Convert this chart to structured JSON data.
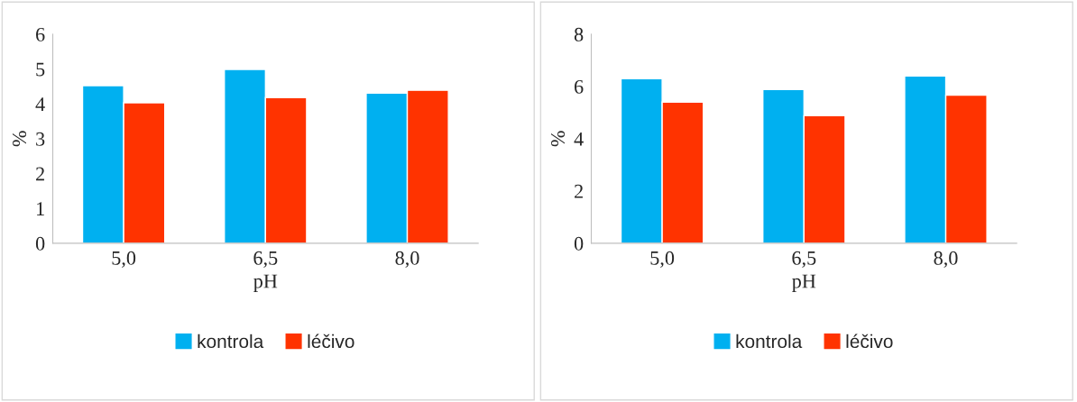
{
  "chart_data": [
    {
      "type": "bar",
      "xlabel": "pH",
      "ylabel": "%",
      "categories": [
        "5,0",
        "6,5",
        "8,0"
      ],
      "series": [
        {
          "name": "kontrola",
          "color": "#00b0f0",
          "values": [
            4.52,
            4.99,
            4.31
          ]
        },
        {
          "name": "léčivo",
          "color": "#ff3300",
          "values": [
            4.03,
            4.18,
            4.39
          ]
        }
      ],
      "ylim": [
        0,
        6
      ],
      "yticks": [
        0,
        1,
        2,
        3,
        4,
        5,
        6
      ],
      "grid": false,
      "legend": "bottom"
    },
    {
      "type": "bar",
      "xlabel": "pH",
      "ylabel": "%",
      "categories": [
        "5,0",
        "6,5",
        "8,0"
      ],
      "series": [
        {
          "name": "kontrola",
          "color": "#00b0f0",
          "values": [
            6.3,
            5.88,
            6.4
          ]
        },
        {
          "name": "léčivo",
          "color": "#ff3300",
          "values": [
            5.4,
            4.88,
            5.67
          ]
        }
      ],
      "ylim": [
        0,
        8
      ],
      "yticks": [
        0,
        2,
        4,
        6,
        8
      ],
      "grid": false,
      "legend": "bottom"
    }
  ]
}
